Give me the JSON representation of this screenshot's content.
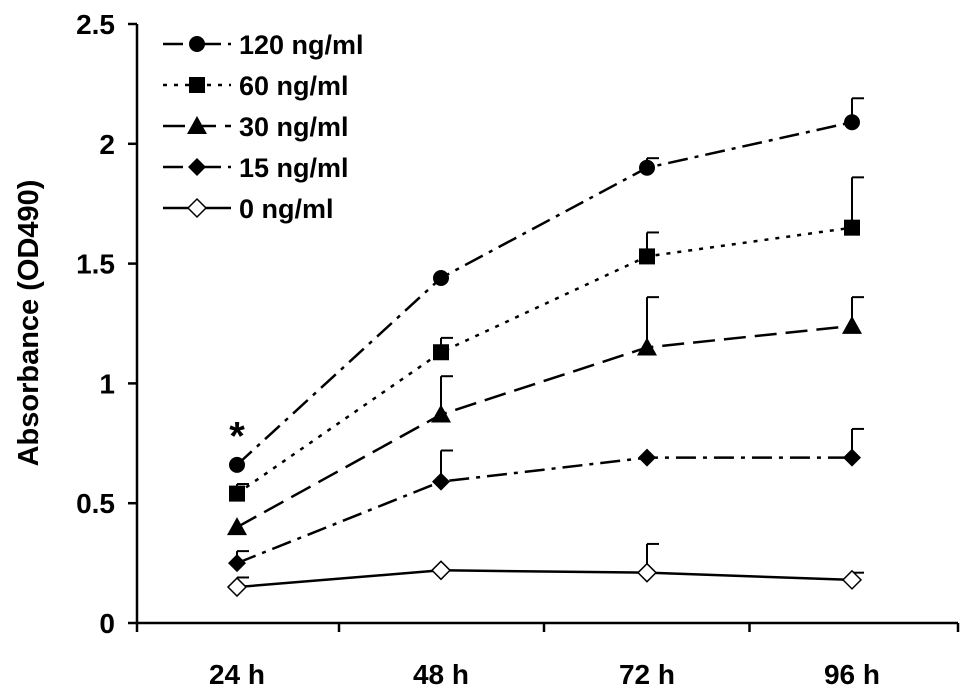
{
  "chart_data": {
    "type": "line",
    "title": "",
    "xlabel": "",
    "ylabel": "Absorbance (OD490)",
    "categories": [
      "24 h",
      "48 h",
      "72 h",
      "96 h"
    ],
    "ylim": [
      0,
      2.5
    ],
    "yticks": [
      "0",
      "0.5",
      "1",
      "1.5",
      "2",
      "2.5"
    ],
    "grid": false,
    "legend_position": "top-left",
    "series": [
      {
        "name": "120 ng/ml",
        "marker": "circle",
        "line_style": "dash-dot",
        "color": "#000000",
        "values": [
          0.66,
          1.44,
          1.9,
          2.09
        ],
        "errors": [
          0.0,
          0.0,
          0.04,
          0.1
        ]
      },
      {
        "name": "60 ng/ml",
        "marker": "square",
        "line_style": "dotted",
        "color": "#000000",
        "values": [
          0.54,
          1.13,
          1.53,
          1.65
        ],
        "errors": [
          0.04,
          0.06,
          0.1,
          0.21
        ]
      },
      {
        "name": "30 ng/ml",
        "marker": "triangle",
        "line_style": "dashed",
        "color": "#000000",
        "values": [
          0.4,
          0.87,
          1.15,
          1.24
        ],
        "errors": [
          0.0,
          0.16,
          0.21,
          0.12
        ]
      },
      {
        "name": "15 ng/ml",
        "marker": "diamond",
        "line_style": "dash-dot",
        "color": "#000000",
        "values": [
          0.25,
          0.59,
          0.69,
          0.69
        ],
        "errors": [
          0.05,
          0.13,
          0.0,
          0.12
        ]
      },
      {
        "name": "0 ng/ml",
        "marker": "open-diamond",
        "line_style": "solid",
        "color": "#000000",
        "values": [
          0.15,
          0.22,
          0.21,
          0.18
        ],
        "errors": [
          0.04,
          0.0,
          0.12,
          0.03
        ]
      }
    ],
    "annotations": [
      {
        "text": "*",
        "category": "24 h",
        "y": 0.8
      }
    ]
  }
}
